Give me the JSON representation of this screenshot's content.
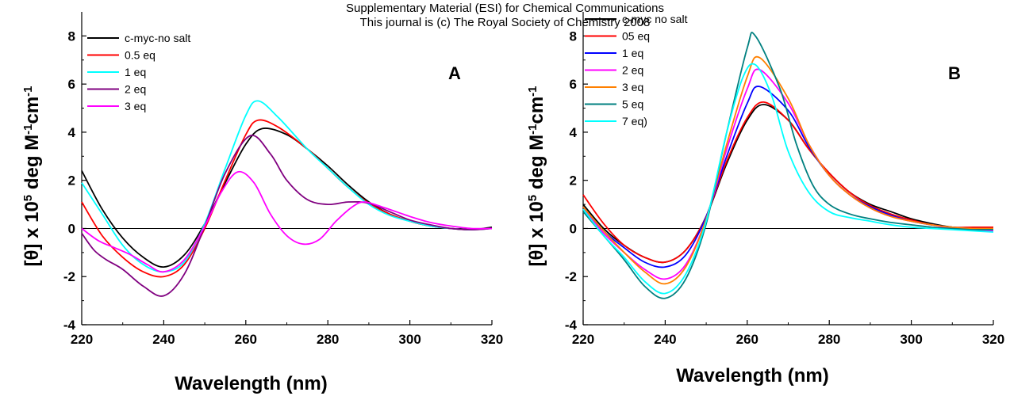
{
  "header": {
    "line1": "Supplementary Material (ESI) for Chemical Communications",
    "line2": "This journal is (c) The Royal Society of Chemistry 2008"
  },
  "chart_data": [
    {
      "type": "line",
      "panel_label": "A",
      "xlabel": "Wavelength (nm)",
      "ylabel_parts": [
        "[θ] x 10",
        "5",
        " deg M",
        "-1",
        "cm",
        "-1"
      ],
      "xlim": [
        220,
        320
      ],
      "ylim": [
        -4,
        9
      ],
      "xticks": [
        220,
        240,
        260,
        280,
        300,
        320
      ],
      "yticks": [
        -4,
        -2,
        0,
        2,
        4,
        6,
        8
      ],
      "zero_line": true,
      "legend_position": "top-left",
      "series": [
        {
          "name": "c-myc-no salt",
          "color": "#000000",
          "x": [
            220,
            225,
            230,
            235,
            240,
            245,
            250,
            255,
            260,
            264,
            270,
            275,
            280,
            285,
            290,
            295,
            300,
            305,
            310,
            315,
            320
          ],
          "y": [
            2.4,
            0.8,
            -0.4,
            -1.2,
            -1.6,
            -1.1,
            0.2,
            1.9,
            3.5,
            4.15,
            3.9,
            3.3,
            2.6,
            1.8,
            1.1,
            0.6,
            0.3,
            0.1,
            0.0,
            -0.05,
            0.05
          ]
        },
        {
          "name": "0.5 eq",
          "color": "#ff0000",
          "x": [
            220,
            225,
            230,
            235,
            240,
            245,
            250,
            255,
            260,
            263,
            268,
            275,
            280,
            285,
            290,
            295,
            300,
            305,
            310,
            315,
            320
          ],
          "y": [
            1.1,
            -0.3,
            -1.2,
            -1.8,
            -2.0,
            -1.5,
            0.0,
            2.0,
            3.9,
            4.5,
            4.2,
            3.3,
            2.5,
            1.7,
            1.05,
            0.6,
            0.3,
            0.1,
            0.0,
            -0.05,
            0.0
          ]
        },
        {
          "name": "1 eq",
          "color": "#00ffff",
          "x": [
            220,
            225,
            230,
            235,
            240,
            245,
            250,
            255,
            260,
            263,
            268,
            275,
            280,
            285,
            290,
            295,
            300,
            305,
            310,
            315,
            320
          ],
          "y": [
            1.9,
            0.6,
            -0.7,
            -1.5,
            -1.8,
            -1.4,
            0.2,
            2.5,
            4.7,
            5.3,
            4.6,
            3.3,
            2.5,
            1.7,
            1.0,
            0.55,
            0.3,
            0.1,
            0.0,
            -0.05,
            0.0
          ]
        },
        {
          "name": "2 eq",
          "color": "#800080",
          "x": [
            220,
            223,
            226,
            230,
            235,
            240,
            245,
            250,
            255,
            261,
            266,
            270,
            275,
            280,
            285,
            290,
            295,
            300,
            305,
            310,
            315,
            320
          ],
          "y": [
            -0.2,
            -0.9,
            -1.3,
            -1.7,
            -2.4,
            -2.8,
            -1.9,
            0.1,
            2.3,
            3.85,
            3.1,
            2.0,
            1.2,
            1.0,
            1.1,
            1.05,
            0.7,
            0.35,
            0.15,
            0.0,
            -0.05,
            0.0
          ]
        },
        {
          "name": "3 eq",
          "color": "#ff00ff",
          "x": [
            220,
            224,
            228,
            232,
            236,
            240,
            245,
            250,
            254,
            258,
            262,
            266,
            270,
            274,
            278,
            282,
            286,
            289,
            294,
            300,
            305,
            310,
            315,
            320
          ],
          "y": [
            0.0,
            -0.5,
            -0.8,
            -1.1,
            -1.5,
            -1.8,
            -1.3,
            0.1,
            1.5,
            2.35,
            1.9,
            0.6,
            -0.3,
            -0.65,
            -0.45,
            0.3,
            0.9,
            1.1,
            0.85,
            0.5,
            0.25,
            0.1,
            0.0,
            0.0
          ]
        }
      ]
    },
    {
      "type": "line",
      "panel_label": "B",
      "xlabel": "Wavelength (nm)",
      "ylabel_parts": [
        "[θ] x 10",
        "5",
        " deg M",
        "-1",
        "cm",
        "-1"
      ],
      "xlim": [
        220,
        320
      ],
      "ylim": [
        -4,
        9
      ],
      "xticks": [
        220,
        240,
        260,
        280,
        300,
        320
      ],
      "yticks": [
        -4,
        -2,
        0,
        2,
        4,
        6,
        8
      ],
      "zero_line": true,
      "legend_position": "top-left",
      "series": [
        {
          "name": "c-myc no salt",
          "color": "#000000",
          "x": [
            220,
            225,
            230,
            235,
            240,
            245,
            250,
            255,
            260,
            264,
            270,
            275,
            280,
            285,
            290,
            295,
            300,
            305,
            310,
            315,
            320
          ],
          "y": [
            1.0,
            0.0,
            -0.7,
            -1.2,
            -1.4,
            -0.9,
            0.5,
            2.7,
            4.5,
            5.15,
            4.5,
            3.3,
            2.3,
            1.5,
            1.0,
            0.7,
            0.4,
            0.2,
            0.05,
            0.0,
            0.0
          ]
        },
        {
          "name": "05 eq",
          "color": "#ff0000",
          "x": [
            220,
            225,
            230,
            235,
            240,
            245,
            250,
            255,
            260,
            264,
            270,
            275,
            280,
            285,
            290,
            295,
            300,
            305,
            310,
            315,
            320
          ],
          "y": [
            1.4,
            0.2,
            -0.7,
            -1.2,
            -1.4,
            -0.9,
            0.5,
            2.8,
            4.6,
            5.25,
            4.5,
            3.3,
            2.3,
            1.5,
            0.95,
            0.6,
            0.35,
            0.15,
            0.05,
            0.05,
            0.05
          ]
        },
        {
          "name": "1 eq",
          "color": "#0000ff",
          "x": [
            220,
            225,
            230,
            235,
            240,
            245,
            250,
            255,
            260,
            263,
            270,
            275,
            280,
            285,
            290,
            295,
            300,
            305,
            310,
            315,
            320
          ],
          "y": [
            0.9,
            -0.1,
            -0.8,
            -1.4,
            -1.6,
            -1.1,
            0.5,
            3.0,
            5.2,
            5.9,
            4.9,
            3.4,
            2.2,
            1.4,
            0.9,
            0.55,
            0.3,
            0.15,
            0.05,
            0.0,
            0.0
          ]
        },
        {
          "name": "2 eq",
          "color": "#ff00ff",
          "x": [
            220,
            225,
            230,
            235,
            240,
            245,
            250,
            255,
            260,
            263,
            270,
            275,
            280,
            285,
            290,
            295,
            300,
            305,
            310,
            315,
            320
          ],
          "y": [
            0.8,
            -0.2,
            -1.0,
            -1.7,
            -2.1,
            -1.5,
            0.4,
            3.3,
            5.8,
            6.6,
            5.2,
            3.5,
            2.2,
            1.4,
            0.85,
            0.5,
            0.3,
            0.15,
            0.0,
            -0.05,
            -0.1
          ]
        },
        {
          "name": "3 eq",
          "color": "#ff8000",
          "x": [
            220,
            225,
            230,
            235,
            240,
            245,
            250,
            255,
            260,
            263,
            270,
            275,
            280,
            285,
            290,
            295,
            300,
            305,
            310,
            315,
            320
          ],
          "y": [
            0.9,
            -0.1,
            -1.0,
            -1.8,
            -2.3,
            -1.6,
            0.4,
            3.5,
            6.3,
            7.1,
            5.4,
            3.5,
            2.2,
            1.4,
            0.85,
            0.5,
            0.3,
            0.15,
            0.05,
            0.0,
            0.0
          ]
        },
        {
          "name": "5 eq",
          "color": "#008080",
          "x": [
            220,
            225,
            230,
            235,
            240,
            245,
            250,
            255,
            260,
            262,
            268,
            272,
            276,
            280,
            285,
            290,
            295,
            300,
            305,
            310,
            315,
            320
          ],
          "y": [
            0.7,
            -0.3,
            -1.3,
            -2.4,
            -2.9,
            -2.1,
            0.2,
            4.0,
            7.5,
            8.0,
            5.8,
            3.5,
            1.8,
            1.0,
            0.6,
            0.4,
            0.25,
            0.15,
            0.05,
            0.0,
            -0.05,
            -0.05
          ]
        },
        {
          "name": "7 eq)",
          "color": "#00ffff",
          "x": [
            220,
            225,
            230,
            235,
            240,
            245,
            250,
            255,
            259,
            262,
            266,
            270,
            275,
            280,
            285,
            290,
            295,
            300,
            305,
            310,
            315,
            320
          ],
          "y": [
            0.8,
            -0.3,
            -1.2,
            -2.2,
            -2.7,
            -1.9,
            0.3,
            4.0,
            6.3,
            6.8,
            5.5,
            3.2,
            1.5,
            0.7,
            0.45,
            0.3,
            0.15,
            0.05,
            0.0,
            -0.05,
            -0.1,
            -0.15
          ]
        }
      ]
    }
  ]
}
